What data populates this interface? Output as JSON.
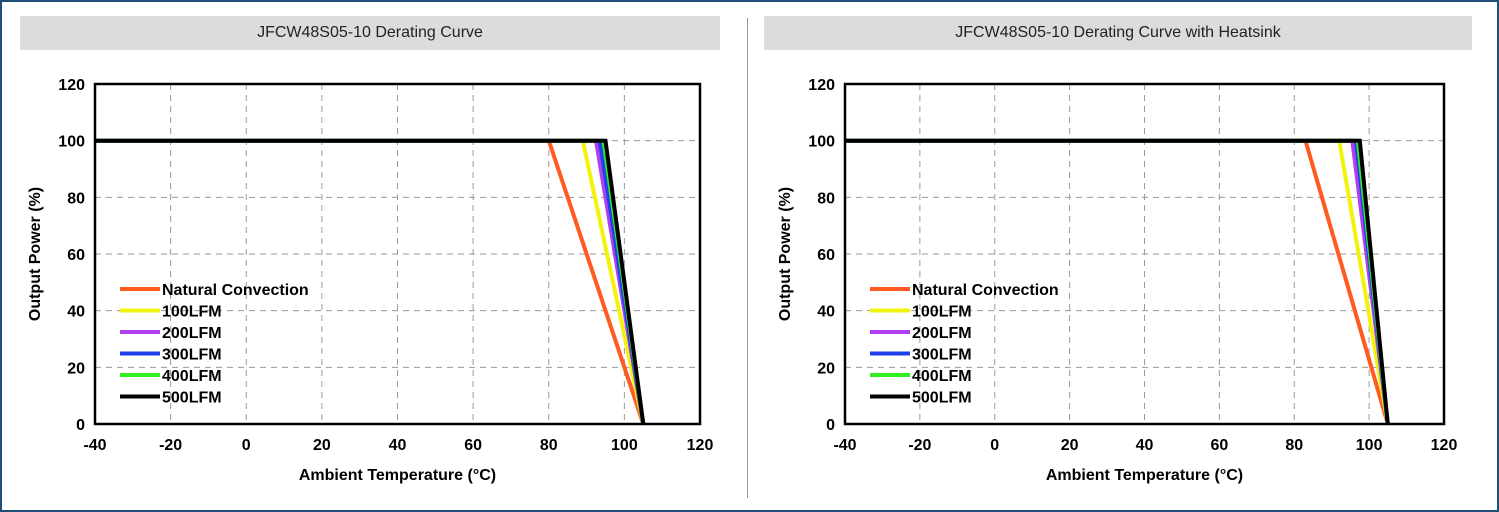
{
  "chart_data": [
    {
      "type": "line",
      "title": "JFCW48S05-10 Derating Curve",
      "xlabel": "Ambient Temperature (°C)",
      "ylabel": "Output Power (%)",
      "xlim": [
        -40,
        120
      ],
      "ylim": [
        0,
        120
      ],
      "xticks": [
        "-40",
        "-20",
        "0",
        "20",
        "40",
        "60",
        "80",
        "100",
        "120"
      ],
      "yticks": [
        "0",
        "20",
        "40",
        "60",
        "80",
        "100",
        "120"
      ],
      "grid": true,
      "legend_position": "lower-left",
      "series": [
        {
          "name": "Natural Convection",
          "color": "#ff5a1f",
          "points": [
            [
              -40,
              100
            ],
            [
              80,
              100
            ],
            [
              105,
              0
            ]
          ]
        },
        {
          "name": "100LFM",
          "color": "#f2f20a",
          "points": [
            [
              -40,
              100
            ],
            [
              89,
              100
            ],
            [
              105,
              0
            ]
          ]
        },
        {
          "name": "200LFM",
          "color": "#b040f0",
          "points": [
            [
              -40,
              100
            ],
            [
              92.5,
              100
            ],
            [
              105,
              0
            ]
          ]
        },
        {
          "name": "300LFM",
          "color": "#2040f0",
          "points": [
            [
              -40,
              100
            ],
            [
              93.5,
              100
            ],
            [
              105,
              0
            ]
          ]
        },
        {
          "name": "400LFM",
          "color": "#30f020",
          "points": [
            [
              -40,
              100
            ],
            [
              94.5,
              100
            ],
            [
              105,
              0
            ]
          ]
        },
        {
          "name": "500LFM",
          "color": "#000000",
          "points": [
            [
              -40,
              100
            ],
            [
              95,
              100
            ],
            [
              105,
              0
            ]
          ]
        }
      ]
    },
    {
      "type": "line",
      "title": "JFCW48S05-10 Derating Curve with Heatsink",
      "xlabel": "Ambient Temperature (°C)",
      "ylabel": "Output Power (%)",
      "xlim": [
        -40,
        120
      ],
      "ylim": [
        0,
        120
      ],
      "xticks": [
        "-40",
        "-20",
        "0",
        "20",
        "40",
        "60",
        "80",
        "100",
        "120"
      ],
      "yticks": [
        "0",
        "20",
        "40",
        "60",
        "80",
        "100",
        "120"
      ],
      "grid": true,
      "legend_position": "lower-left",
      "series": [
        {
          "name": "Natural Convection",
          "color": "#ff5a1f",
          "points": [
            [
              -40,
              100
            ],
            [
              83,
              100
            ],
            [
              105,
              0
            ]
          ]
        },
        {
          "name": "100LFM",
          "color": "#f2f20a",
          "points": [
            [
              -40,
              100
            ],
            [
              92,
              100
            ],
            [
              105,
              0
            ]
          ]
        },
        {
          "name": "200LFM",
          "color": "#b040f0",
          "points": [
            [
              -40,
              100
            ],
            [
              95.5,
              100
            ],
            [
              105,
              0
            ]
          ]
        },
        {
          "name": "300LFM",
          "color": "#2040f0",
          "points": [
            [
              -40,
              100
            ],
            [
              96.5,
              100
            ],
            [
              105,
              0
            ]
          ]
        },
        {
          "name": "400LFM",
          "color": "#30f020",
          "points": [
            [
              -40,
              100
            ],
            [
              97,
              100
            ],
            [
              105,
              0
            ]
          ]
        },
        {
          "name": "500LFM",
          "color": "#000000",
          "points": [
            [
              -40,
              100
            ],
            [
              97.5,
              100
            ],
            [
              105,
              0
            ]
          ]
        }
      ]
    }
  ],
  "colors": {
    "border": "#1f4e79",
    "title_bar": "#dcdcdc",
    "grid": "#9a9a9a"
  }
}
